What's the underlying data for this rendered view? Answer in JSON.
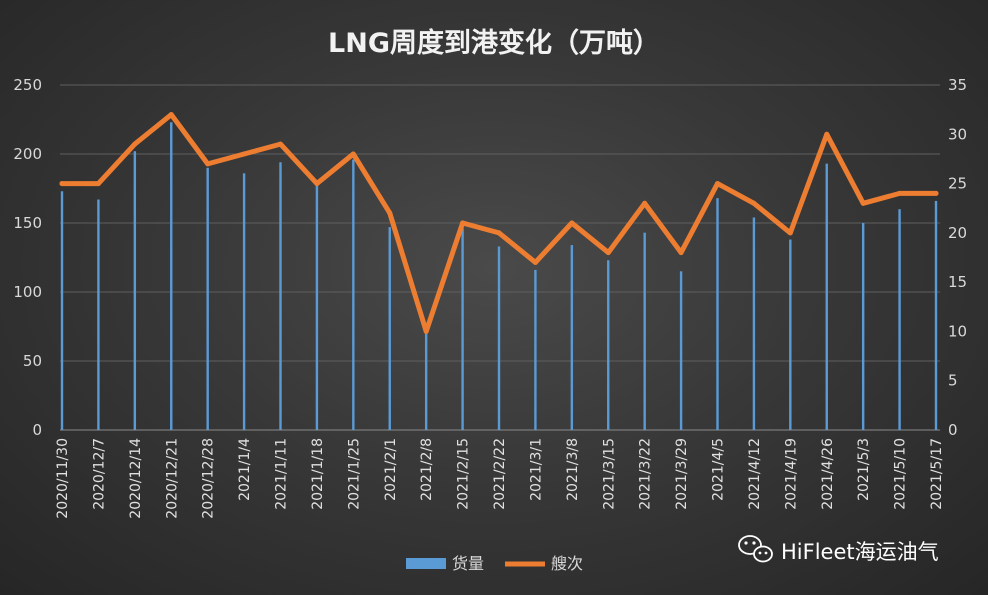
{
  "chart_data": {
    "type": "bar+line",
    "title": "LNG周度到港变化（万吨）",
    "categories": [
      "2020/11/30",
      "2020/12/7",
      "2020/12/14",
      "2020/12/21",
      "2020/12/28",
      "2021/1/4",
      "2021/1/11",
      "2021/1/18",
      "2021/1/25",
      "2021/2/1",
      "2021/2/8",
      "2021/2/15",
      "2021/2/22",
      "2021/3/1",
      "2021/3/8",
      "2021/3/15",
      "2021/3/22",
      "2021/3/29",
      "2021/4/5",
      "2021/4/12",
      "2021/4/19",
      "2021/4/26",
      "2021/5/3",
      "2021/5/10",
      "2021/5/17"
    ],
    "series": [
      {
        "name": "货量",
        "type": "bar",
        "axis": "left",
        "color": "#5b9bd5",
        "values": [
          173,
          167,
          202,
          223,
          190,
          186,
          194,
          178,
          196,
          147,
          73,
          146,
          133,
          116,
          134,
          123,
          143,
          115,
          168,
          154,
          138,
          193,
          150,
          160,
          166
        ]
      },
      {
        "name": "艘次",
        "type": "line",
        "axis": "right",
        "color": "#ed7d31",
        "values": [
          25,
          25,
          29,
          32,
          27,
          28,
          29,
          25,
          28,
          22,
          10,
          21,
          20,
          17,
          21,
          18,
          23,
          18,
          25,
          23,
          20,
          30,
          23,
          24,
          24
        ]
      }
    ],
    "left_axis": {
      "min": 0,
      "max": 250,
      "ticks": [
        0,
        50,
        100,
        150,
        200,
        250
      ]
    },
    "right_axis": {
      "min": 0,
      "max": 35,
      "ticks": [
        0,
        5,
        10,
        15,
        20,
        25,
        30,
        35
      ]
    },
    "grid": true,
    "legend_position": "bottom"
  },
  "watermark": {
    "text": "HiFleet海运油气",
    "icon": "wechat-icon"
  }
}
